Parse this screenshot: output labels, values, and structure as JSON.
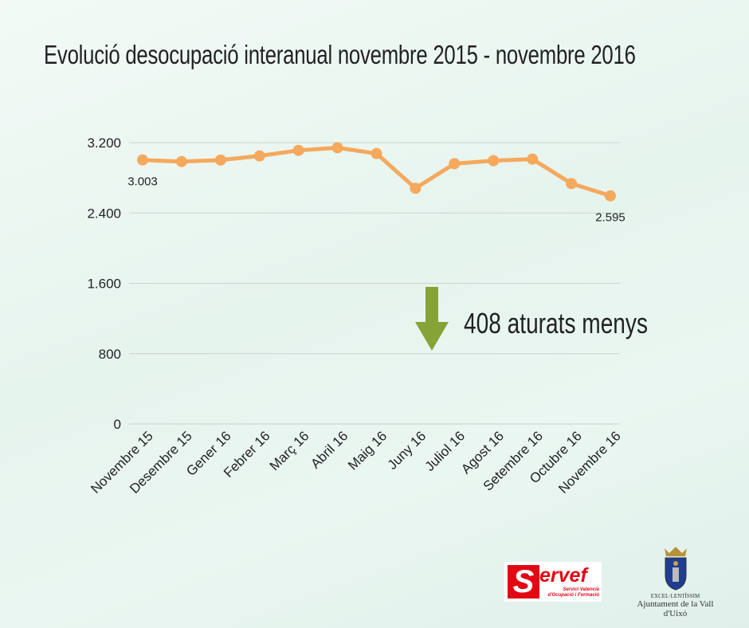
{
  "title": "Evolució desocupació interanual novembre 2015 - novembre 2016",
  "annotation": "408 aturats menys",
  "logos": {
    "servef": {
      "letter": "S",
      "word": "ervef",
      "line1": "Servici Valencià",
      "line2": "d'Ocupació i Formació"
    },
    "ajuntament": {
      "line1": "EXCEL·LENTÍSSIM",
      "line2": "Ajuntament de la Vall d'Uixó"
    }
  },
  "colors": {
    "line": "#f5a95d",
    "arrow": "#86a337",
    "grid": "#c9d3cf"
  },
  "chart_data": {
    "type": "line",
    "title": "Evolució desocupació interanual novembre 2015 - novembre 2016",
    "categories": [
      "Novembre 15",
      "Desembre 15",
      "Gener 16",
      "Febrer 16",
      "Març 16",
      "Abril 16",
      "Maig 16",
      "Juny 16",
      "Juliol 16",
      "Agost 16",
      "Setembre 16",
      "Octubre 16",
      "Novembre 16"
    ],
    "values": [
      3003,
      2985,
      3002,
      3049,
      3112,
      3142,
      3076,
      2681,
      2961,
      2995,
      3013,
      2735,
      2595
    ],
    "data_labels": [
      {
        "index": 0,
        "text": "3.003"
      },
      {
        "index": 12,
        "text": "2.595"
      }
    ],
    "yticks": [
      {
        "value": 0,
        "label": "0"
      },
      {
        "value": 800,
        "label": "800"
      },
      {
        "value": 1600,
        "label": "1.600"
      },
      {
        "value": 2400,
        "label": "2.400"
      },
      {
        "value": 3200,
        "label": "3.200"
      }
    ],
    "ylim": [
      0,
      3200
    ],
    "grid": true,
    "xlabel": "",
    "ylabel": ""
  }
}
